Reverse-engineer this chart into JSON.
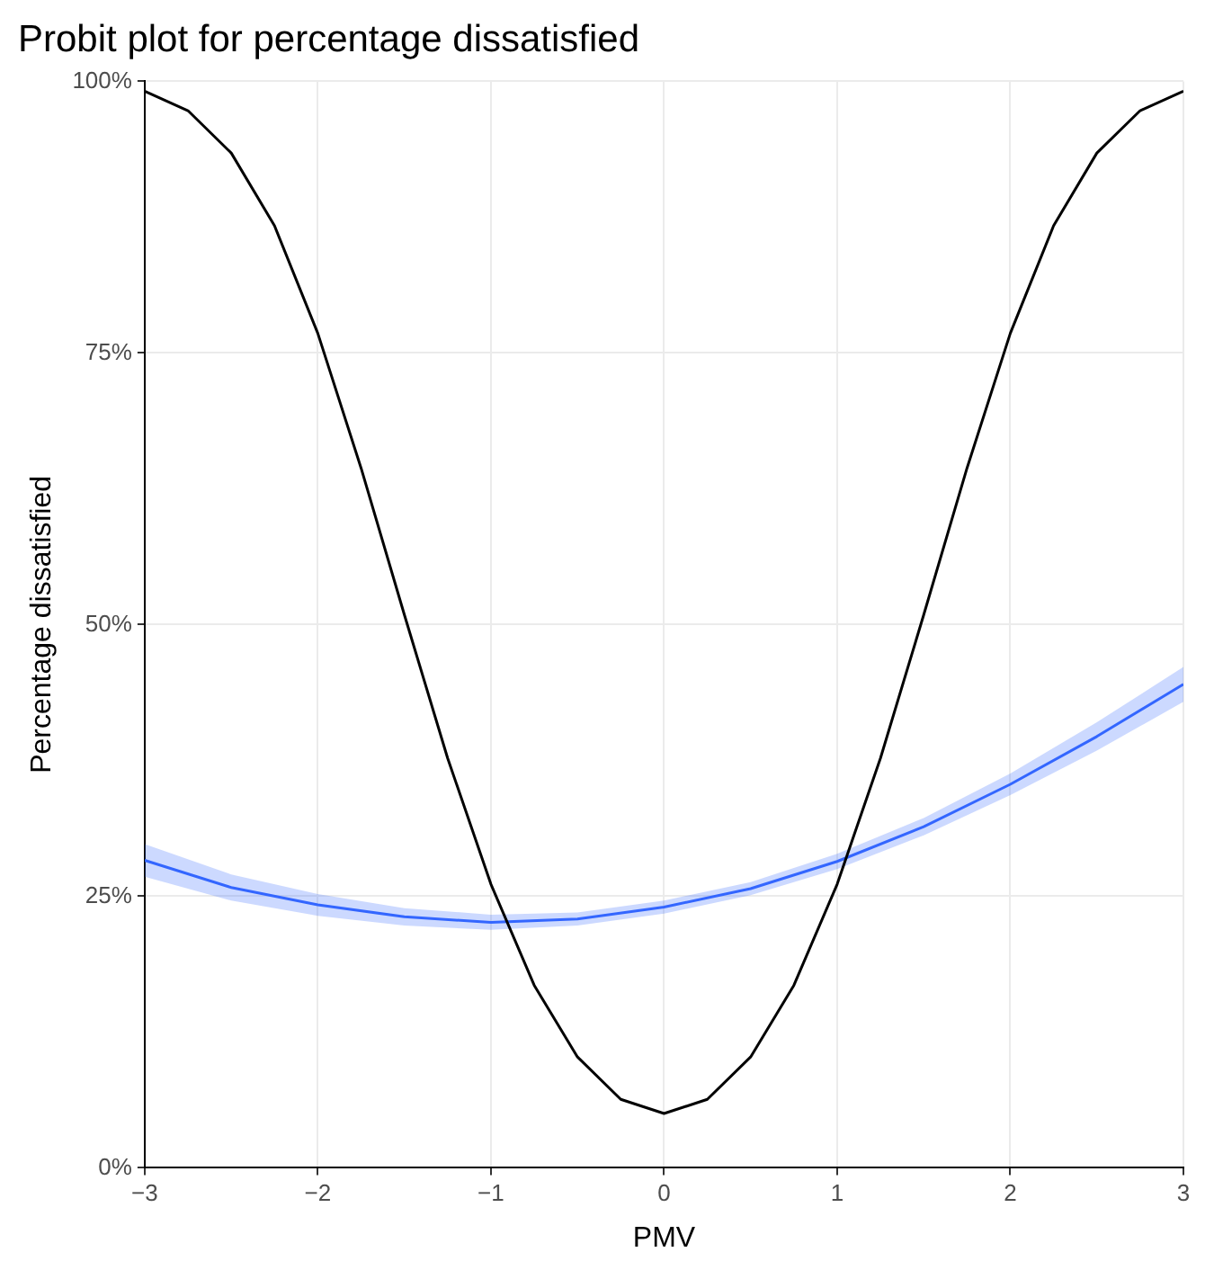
{
  "chart_data": {
    "type": "line",
    "title": "Probit plot for percentage dissatisfied",
    "xlabel": "PMV",
    "ylabel": "Percentage dissatisfied",
    "xlim": [
      -3,
      3
    ],
    "ylim": [
      0,
      100
    ],
    "xticks": [
      {
        "value": -3,
        "label": "−3"
      },
      {
        "value": -2,
        "label": "−2"
      },
      {
        "value": -1,
        "label": "−1"
      },
      {
        "value": 0,
        "label": "0"
      },
      {
        "value": 1,
        "label": "1"
      },
      {
        "value": 2,
        "label": "2"
      },
      {
        "value": 3,
        "label": "3"
      }
    ],
    "yticks": [
      {
        "value": 0,
        "label": "0%"
      },
      {
        "value": 25,
        "label": "25%"
      },
      {
        "value": 50,
        "label": "50%"
      },
      {
        "value": 75,
        "label": "75%"
      },
      {
        "value": 100,
        "label": "100%"
      }
    ],
    "grid": true,
    "marker": "none",
    "line_style": "solid",
    "series": [
      {
        "color": "#000000",
        "x": [
          -3,
          -2.75,
          -2.5,
          -2.25,
          -2,
          -1.75,
          -1.5,
          -1.25,
          -1,
          -0.75,
          -0.5,
          -0.25,
          0,
          0.25,
          0.5,
          0.75,
          1,
          1.25,
          1.5,
          1.75,
          2,
          2.25,
          2.5,
          2.75,
          3
        ],
        "values": [
          99.1,
          97.3,
          93.4,
          86.7,
          76.8,
          64.4,
          50.9,
          37.7,
          26.1,
          16.8,
          10.2,
          6.3,
          5,
          6.3,
          10.2,
          16.8,
          26.1,
          37.7,
          50.9,
          64.4,
          76.8,
          86.7,
          93.4,
          97.3,
          99.1
        ]
      },
      {
        "color": "#3366ff",
        "x": [
          -3,
          -2.5,
          -2,
          -1.5,
          -1,
          -0.5,
          0,
          0.5,
          1,
          1.5,
          2,
          2.5,
          3
        ],
        "values": [
          28.3,
          25.8,
          24.2,
          23.1,
          22.6,
          22.9,
          24,
          25.7,
          28.2,
          31.4,
          35.3,
          39.7,
          44.5
        ],
        "lower": [
          26.8,
          24.6,
          23.2,
          22.3,
          21.9,
          22.3,
          23.4,
          25.1,
          27.5,
          30.6,
          34.3,
          38.4,
          42.9
        ],
        "upper": [
          29.8,
          27,
          25.2,
          23.9,
          23.3,
          23.5,
          24.6,
          26.3,
          28.9,
          32.2,
          36.3,
          41,
          46.1
        ]
      }
    ]
  }
}
